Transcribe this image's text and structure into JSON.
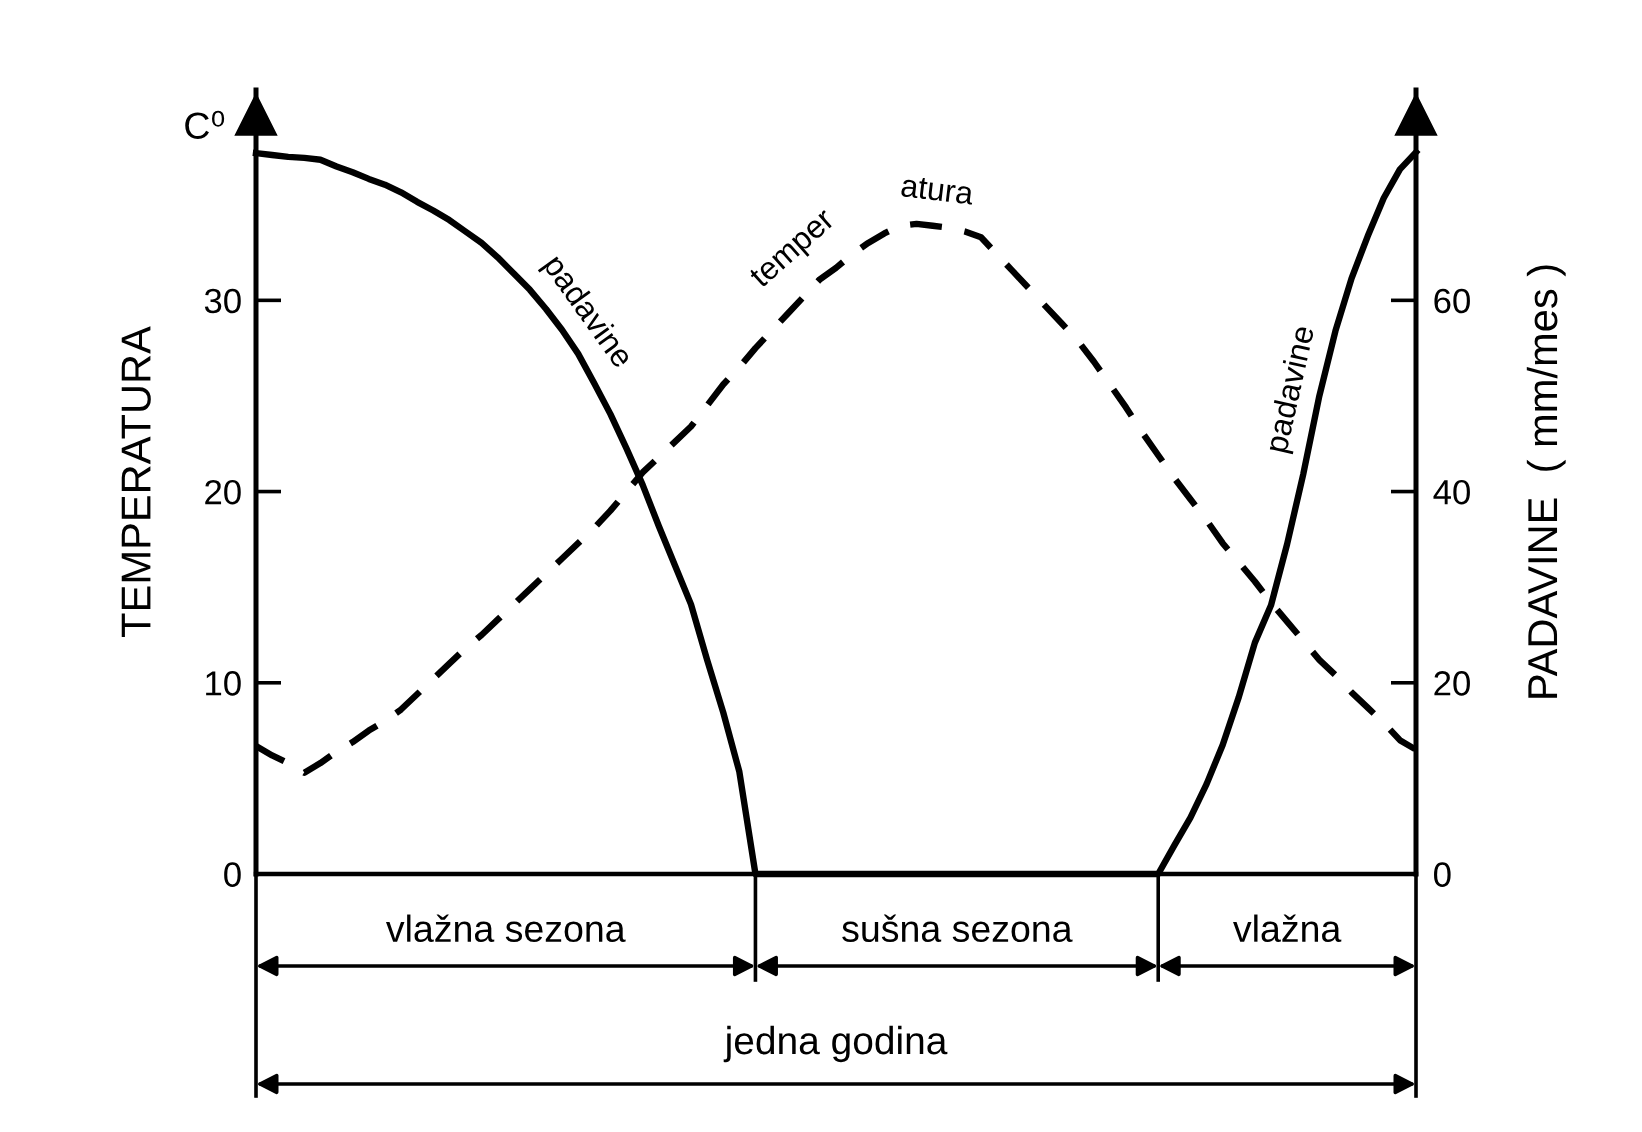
{
  "chart_data": {
    "type": "line",
    "ylabel": "TEMPERATURA",
    "y2label": "PADAVINE  ( mm/mes )",
    "annotations": [
      "C⁰",
      "vlažna sezona",
      "sušna sezona",
      "vlažna",
      "jedna godina"
    ],
    "categories": [
      null,
      null,
      null,
      null,
      null,
      null,
      null,
      null,
      null,
      null,
      null,
      null,
      null,
      null,
      null,
      null,
      null,
      null,
      null,
      null,
      null,
      null,
      null,
      null,
      null,
      null,
      null,
      null,
      null,
      null,
      null,
      null,
      null,
      null,
      null,
      null,
      null,
      null,
      null,
      null,
      null,
      null,
      null,
      null,
      null,
      null,
      null,
      null,
      null,
      null,
      null,
      null,
      null,
      null,
      null,
      null,
      null,
      null,
      null,
      null,
      null,
      null,
      null,
      null,
      null,
      null,
      null,
      null,
      null,
      null,
      null,
      null,
      null
    ],
    "ylim": [
      0,
      41
    ],
    "yticks": [
      0,
      10,
      20,
      30
    ],
    "y2lim": [
      0,
      82
    ],
    "y2ticks": [
      0,
      20,
      40,
      60
    ],
    "series": [
      {
        "name": "temper atura",
        "color": "#000000",
        "line_style": "dashed",
        "values": [
          6.7,
          6.2,
          5.8,
          5.3,
          5.8,
          6.4,
          6.9,
          7.5,
          8.0,
          8.6,
          9.4,
          10.2,
          11.0,
          11.8,
          12.5,
          13.3,
          14.1,
          14.9,
          15.7,
          16.5,
          17.3,
          18.1,
          19.0,
          20.0,
          21.0,
          21.8,
          22.6,
          23.4,
          24.5,
          25.6,
          26.5,
          27.5,
          28.4,
          29.3,
          30.2,
          31.1,
          31.7,
          32.4,
          33.0,
          33.5,
          33.9,
          34.0,
          33.9,
          33.8,
          33.6,
          33.3,
          32.4,
          31.5,
          30.6,
          29.7,
          28.8,
          27.9,
          26.8,
          25.6,
          24.4,
          23.1,
          21.9,
          20.7,
          19.6,
          18.5,
          17.3,
          16.3,
          15.3,
          14.2,
          13.2,
          12.2,
          11.2,
          10.4,
          9.5,
          8.7,
          7.9,
          7.0,
          6.5
        ]
      },
      {
        "name": "padavine",
        "color": "#000000",
        "line_style": "solid",
        "axis": "y2",
        "values": [
          75.4,
          75.2,
          75.0,
          74.9,
          74.7,
          74.0,
          73.4,
          72.7,
          72.1,
          71.3,
          70.3,
          69.4,
          68.4,
          67.2,
          66.0,
          64.5,
          62.8,
          61.1,
          59.1,
          56.9,
          54.4,
          51.3,
          48.1,
          44.5,
          40.7,
          36.4,
          32.3,
          28.2,
          22.4,
          16.9,
          10.7,
          0,
          0,
          0,
          0,
          0,
          0,
          0,
          0,
          0,
          0,
          0,
          0,
          0,
          0,
          0,
          0,
          0,
          0,
          0,
          0,
          0,
          0,
          0,
          0,
          0,
          0,
          3.0,
          5.9,
          9.4,
          13.5,
          18.5,
          24.2,
          28.1,
          34.5,
          41.8,
          50.0,
          56.8,
          62.3,
          66.7,
          70.7,
          73.7,
          75.5
        ]
      }
    ]
  }
}
